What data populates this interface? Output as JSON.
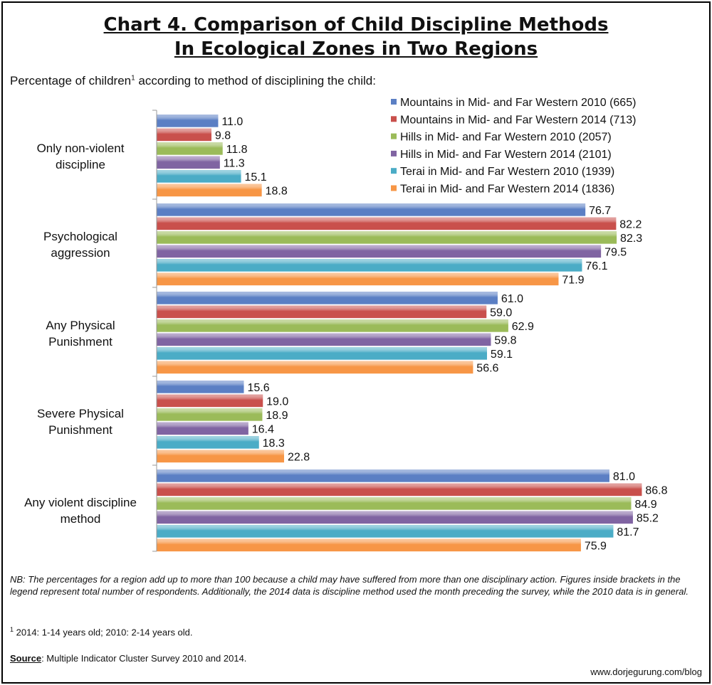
{
  "title_line1": "Chart 4. Comparison of Child Discipline Methods",
  "title_line2": "In Ecological Zones in Two Regions",
  "subtitle_before": "Percentage of children",
  "subtitle_sup": "1",
  "subtitle_after": " according to method of disciplining the child:",
  "nb_text": "NB: The percentages for a region add up to more than 100 because a child may have suffered from more than one disciplinary action. Figures inside brackets in the legend represent total number of respondents. Additionally, the 2014 data is discipline method used the month preceding the survey, while the 2010 data is in general.",
  "footnote_sup": "1",
  "footnote_text": " 2014: 1-14 years old; 2010: 2-14 years old.",
  "source_label": "Source",
  "source_text": ": Multiple Indicator Cluster Survey 2010 and 2014.",
  "url": "www.dorjegurung.com/blog",
  "chart_data": {
    "type": "bar",
    "orientation": "horizontal",
    "categories": [
      "Only non-violent discipline",
      "Psychological aggression",
      "Any Physical Punishment",
      "Severe Physical Punishment",
      "Any violent discipline method"
    ],
    "series": [
      {
        "name": "Mountains in Mid- and Far Western 2010 (665)",
        "color": "#5b7fc4",
        "values": [
          11.0,
          76.7,
          61.0,
          15.6,
          81.0
        ]
      },
      {
        "name": "Mountains in Mid- and Far Western 2014 (713)",
        "color": "#c9504c",
        "values": [
          9.8,
          82.2,
          59.0,
          19.0,
          86.8
        ]
      },
      {
        "name": "Hills in Mid- and Far Western 2010 (2057)",
        "color": "#9bbb59",
        "values": [
          11.8,
          82.3,
          62.9,
          18.9,
          84.9
        ]
      },
      {
        "name": "Hills in Mid- and Far Western 2014 (2101)",
        "color": "#8064a2",
        "values": [
          11.3,
          79.5,
          59.8,
          16.4,
          85.2
        ]
      },
      {
        "name": "Terai in Mid- and Far Western 2010 (1939)",
        "color": "#4bacc6",
        "values": [
          15.1,
          76.1,
          59.1,
          18.3,
          81.7
        ]
      },
      {
        "name": "Terai in Mid- and Far Western 2014 (1836)",
        "color": "#f79646",
        "values": [
          18.8,
          71.9,
          56.6,
          22.8,
          75.9
        ]
      }
    ],
    "xlim": [
      0,
      100
    ],
    "grid": false,
    "legend": "top-right",
    "data_labels": true
  }
}
